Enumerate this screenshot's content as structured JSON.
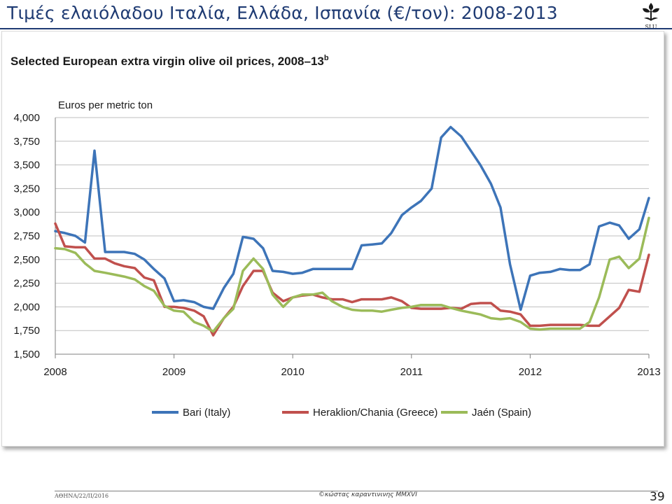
{
  "slide": {
    "title": "Τιμές ελαιόλαδου Ιταλία, Ελλάδα, Ισπανία (€/τον): 2008-2013",
    "logo_text": "SLU",
    "footer_left": "ΑΘΗΝΑ/22/ΙΙ/2016",
    "footer_center": "©κώστας καραντινινης MMXVI",
    "page_number": "39"
  },
  "chart_data": {
    "type": "line",
    "title": "Selected European extra virgin olive oil prices, 2008–13",
    "title_superscript": "b",
    "ylabel": "Euros per metric ton",
    "xlabel": "",
    "ylim": [
      1500,
      4000
    ],
    "xlim": [
      2008,
      2013
    ],
    "yticks": [
      1500,
      1750,
      2000,
      2250,
      2500,
      2750,
      3000,
      3250,
      3500,
      3750,
      4000
    ],
    "ytick_labels": [
      "1,500",
      "1,750",
      "2,000",
      "2,250",
      "2,500",
      "2,750",
      "3,000",
      "3,250",
      "3,500",
      "3,750",
      "4,000"
    ],
    "xticks": [
      2008,
      2009,
      2010,
      2011,
      2012,
      2013
    ],
    "xtick_labels": [
      "2008",
      "2009",
      "2010",
      "2011",
      "2012",
      "2013"
    ],
    "grid": true,
    "legend": "bottom",
    "series": [
      {
        "name": "Bari (Italy)",
        "color": "#3d74b8",
        "x": [
          2008.0,
          2008.08,
          2008.17,
          2008.25,
          2008.33,
          2008.42,
          2008.5,
          2008.58,
          2008.67,
          2008.75,
          2008.83,
          2008.92,
          2009.0,
          2009.08,
          2009.17,
          2009.25,
          2009.33,
          2009.42,
          2009.5,
          2009.58,
          2009.67,
          2009.75,
          2009.83,
          2009.92,
          2010.0,
          2010.08,
          2010.17,
          2010.25,
          2010.33,
          2010.42,
          2010.5,
          2010.58,
          2010.67,
          2010.75,
          2010.83,
          2010.92,
          2011.0,
          2011.08,
          2011.17,
          2011.25,
          2011.33,
          2011.42,
          2011.5,
          2011.58,
          2011.67,
          2011.75,
          2011.83,
          2011.92,
          2012.0,
          2012.08,
          2012.17,
          2012.25,
          2012.33,
          2012.42,
          2012.5,
          2012.58,
          2012.67,
          2012.75,
          2012.83,
          2012.92,
          2013.0
        ],
        "values": [
          2800,
          2780,
          2750,
          2680,
          3650,
          2580,
          2580,
          2580,
          2560,
          2500,
          2400,
          2300,
          2060,
          2070,
          2050,
          2000,
          1980,
          2200,
          2350,
          2740,
          2720,
          2620,
          2380,
          2370,
          2350,
          2360,
          2400,
          2400,
          2400,
          2400,
          2400,
          2650,
          2660,
          2670,
          2780,
          2970,
          3050,
          3120,
          3250,
          3790,
          3900,
          3800,
          3650,
          3500,
          3300,
          3050,
          2450,
          1970,
          2330,
          2360,
          2370,
          2400,
          2390,
          2390,
          2450,
          2850,
          2890,
          2860,
          2720,
          2820,
          3150
        ]
      },
      {
        "name": "Heraklion/Chania (Greece)",
        "color": "#c0504d",
        "x": [
          2008.0,
          2008.08,
          2008.17,
          2008.25,
          2008.33,
          2008.42,
          2008.5,
          2008.58,
          2008.67,
          2008.75,
          2008.83,
          2008.92,
          2009.0,
          2009.08,
          2009.17,
          2009.25,
          2009.33,
          2009.42,
          2009.5,
          2009.58,
          2009.67,
          2009.75,
          2009.83,
          2009.92,
          2010.0,
          2010.08,
          2010.17,
          2010.25,
          2010.33,
          2010.42,
          2010.5,
          2010.58,
          2010.67,
          2010.75,
          2010.83,
          2010.92,
          2011.0,
          2011.08,
          2011.17,
          2011.25,
          2011.33,
          2011.42,
          2011.5,
          2011.58,
          2011.67,
          2011.75,
          2011.83,
          2011.92,
          2012.0,
          2012.08,
          2012.17,
          2012.25,
          2012.33,
          2012.42,
          2012.5,
          2012.58,
          2012.67,
          2012.75,
          2012.83,
          2012.92,
          2013.0
        ],
        "values": [
          2880,
          2640,
          2630,
          2630,
          2510,
          2510,
          2460,
          2430,
          2410,
          2310,
          2280,
          2000,
          2000,
          1990,
          1960,
          1900,
          1700,
          1880,
          2000,
          2220,
          2380,
          2380,
          2150,
          2060,
          2100,
          2120,
          2130,
          2100,
          2080,
          2080,
          2050,
          2080,
          2080,
          2080,
          2100,
          2060,
          1990,
          1980,
          1980,
          1980,
          1990,
          1980,
          2030,
          2040,
          2040,
          1960,
          1950,
          1920,
          1800,
          1800,
          1810,
          1810,
          1810,
          1810,
          1800,
          1800,
          1900,
          1990,
          2180,
          2160,
          2550
        ]
      },
      {
        "name": "Jaén (Spain)",
        "color": "#9bbb59",
        "x": [
          2008.0,
          2008.08,
          2008.17,
          2008.25,
          2008.33,
          2008.42,
          2008.5,
          2008.58,
          2008.67,
          2008.75,
          2008.83,
          2008.92,
          2009.0,
          2009.08,
          2009.17,
          2009.25,
          2009.33,
          2009.42,
          2009.5,
          2009.58,
          2009.67,
          2009.75,
          2009.83,
          2009.92,
          2010.0,
          2010.08,
          2010.17,
          2010.25,
          2010.33,
          2010.42,
          2010.5,
          2010.58,
          2010.67,
          2010.75,
          2010.83,
          2010.92,
          2011.0,
          2011.08,
          2011.17,
          2011.25,
          2011.33,
          2011.42,
          2011.5,
          2011.58,
          2011.67,
          2011.75,
          2011.83,
          2011.92,
          2012.0,
          2012.08,
          2012.17,
          2012.25,
          2012.33,
          2012.42,
          2012.5,
          2012.58,
          2012.67,
          2012.75,
          2012.83,
          2012.92,
          2013.0
        ],
        "values": [
          2620,
          2610,
          2570,
          2460,
          2380,
          2360,
          2340,
          2320,
          2290,
          2220,
          2170,
          2010,
          1960,
          1950,
          1840,
          1800,
          1740,
          1880,
          1980,
          2380,
          2510,
          2400,
          2130,
          2000,
          2100,
          2130,
          2130,
          2150,
          2060,
          2000,
          1970,
          1960,
          1960,
          1950,
          1970,
          1990,
          2000,
          2020,
          2020,
          2020,
          1990,
          1960,
          1940,
          1920,
          1880,
          1870,
          1880,
          1840,
          1770,
          1760,
          1770,
          1770,
          1770,
          1770,
          1840,
          2100,
          2500,
          2530,
          2410,
          2510,
          2940
        ]
      }
    ]
  }
}
